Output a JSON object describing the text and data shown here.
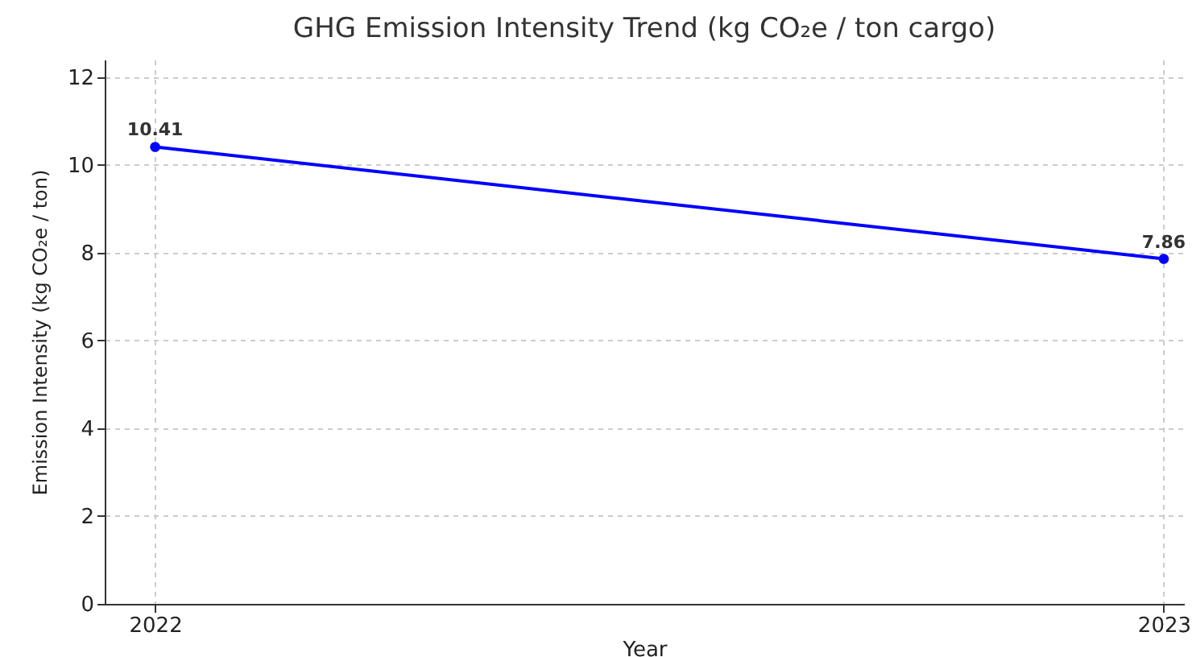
{
  "chart_data": {
    "type": "line",
    "title": "GHG Emission Intensity Trend (kg CO₂e / ton cargo)",
    "xlabel": "Year",
    "ylabel": "Emission Intensity (kg CO₂e / ton)",
    "x": [
      2022,
      2023
    ],
    "series": [
      {
        "color": "#0000ff",
        "values": [
          10.41,
          7.86
        ]
      }
    ],
    "xlim": [
      2021.95,
      2023.02
    ],
    "xticks": [
      2022,
      2023
    ],
    "ylim": [
      0,
      12.4
    ],
    "yticks": [
      0,
      2,
      4,
      6,
      8,
      10,
      12
    ],
    "grid": true,
    "marker": "circle",
    "line_style": "solid",
    "data_labels": true
  }
}
